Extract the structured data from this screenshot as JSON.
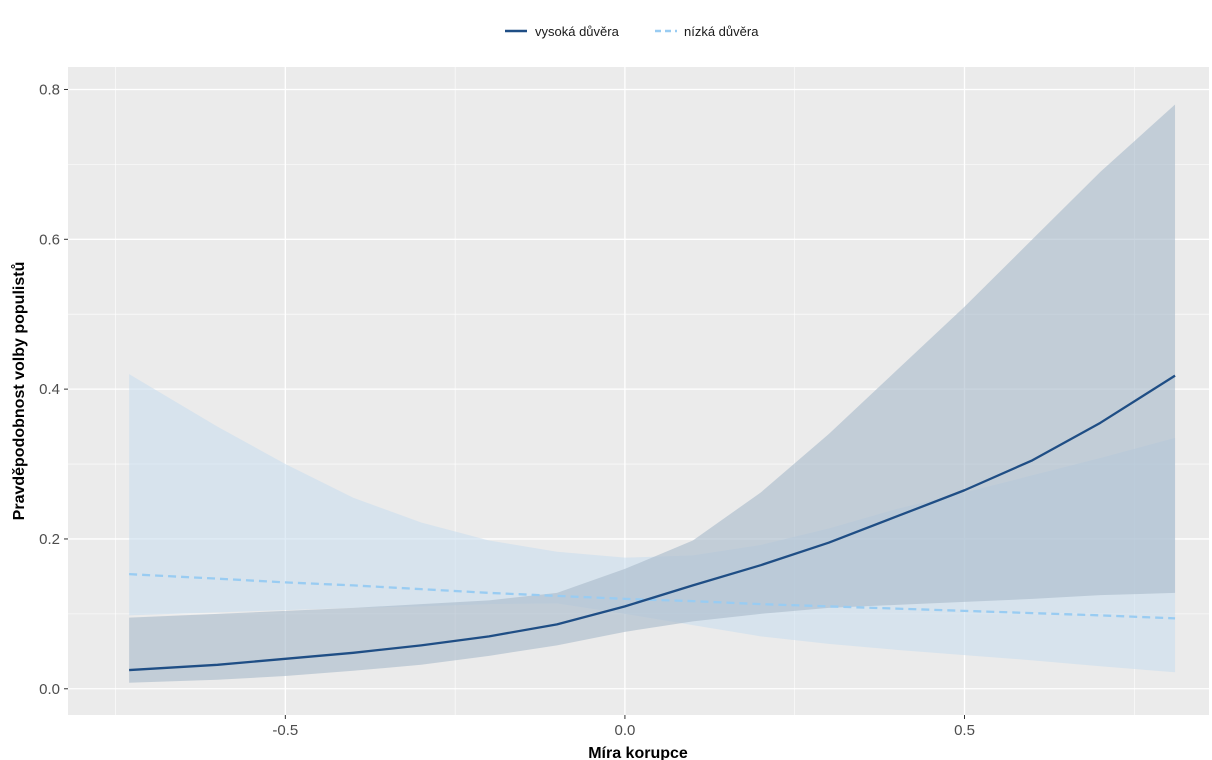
{
  "chart_data": {
    "type": "line",
    "xlabel": "Míra korupce",
    "ylabel": "Pravděpodobnost volby populistů",
    "xlim": [
      -0.82,
      0.86
    ],
    "ylim": [
      -0.035,
      0.83
    ],
    "x_ticks": [
      -0.5,
      0.0,
      0.5
    ],
    "x_tick_labels": [
      "-0.5",
      "0.0",
      "0.5"
    ],
    "y_ticks": [
      0.0,
      0.2,
      0.4,
      0.6,
      0.8
    ],
    "y_tick_labels": [
      "0.0",
      "0.2",
      "0.4",
      "0.6",
      "0.8"
    ],
    "grid": true,
    "legend_position": "top",
    "background_color": "#ebebeb",
    "grid_color": "#ffffff",
    "series": [
      {
        "name": "vysoká důvěra",
        "color": "#1f4e85",
        "ribbon_color": "#a9bccc",
        "dash": "solid",
        "x": [
          -0.73,
          -0.6,
          -0.5,
          -0.4,
          -0.3,
          -0.2,
          -0.1,
          0.0,
          0.1,
          0.2,
          0.3,
          0.4,
          0.5,
          0.6,
          0.7,
          0.81
        ],
        "y": [
          0.025,
          0.032,
          0.04,
          0.048,
          0.058,
          0.07,
          0.086,
          0.11,
          0.138,
          0.165,
          0.195,
          0.23,
          0.265,
          0.305,
          0.355,
          0.418
        ],
        "lower": [
          0.008,
          0.012,
          0.017,
          0.024,
          0.032,
          0.044,
          0.058,
          0.076,
          0.09,
          0.1,
          0.108,
          0.112,
          0.116,
          0.12,
          0.125,
          0.128
        ],
        "upper": [
          0.095,
          0.1,
          0.104,
          0.108,
          0.113,
          0.118,
          0.128,
          0.16,
          0.198,
          0.262,
          0.34,
          0.425,
          0.51,
          0.6,
          0.69,
          0.78
        ]
      },
      {
        "name": "nízká důvěra",
        "color": "#99ccf2",
        "ribbon_color": "#c6ddef",
        "dash": "dashed",
        "x": [
          -0.73,
          -0.6,
          -0.5,
          -0.4,
          -0.3,
          -0.2,
          -0.1,
          0.0,
          0.1,
          0.2,
          0.3,
          0.4,
          0.5,
          0.6,
          0.7,
          0.81
        ],
        "y": [
          0.153,
          0.147,
          0.142,
          0.138,
          0.133,
          0.128,
          0.124,
          0.12,
          0.117,
          0.113,
          0.11,
          0.107,
          0.104,
          0.101,
          0.098,
          0.094
        ],
        "lower": [
          0.098,
          0.102,
          0.105,
          0.108,
          0.11,
          0.113,
          0.114,
          0.1,
          0.085,
          0.07,
          0.06,
          0.052,
          0.045,
          0.038,
          0.03,
          0.022
        ],
        "upper": [
          0.42,
          0.35,
          0.3,
          0.255,
          0.222,
          0.198,
          0.183,
          0.175,
          0.178,
          0.192,
          0.214,
          0.24,
          0.262,
          0.285,
          0.308,
          0.335
        ]
      }
    ]
  }
}
